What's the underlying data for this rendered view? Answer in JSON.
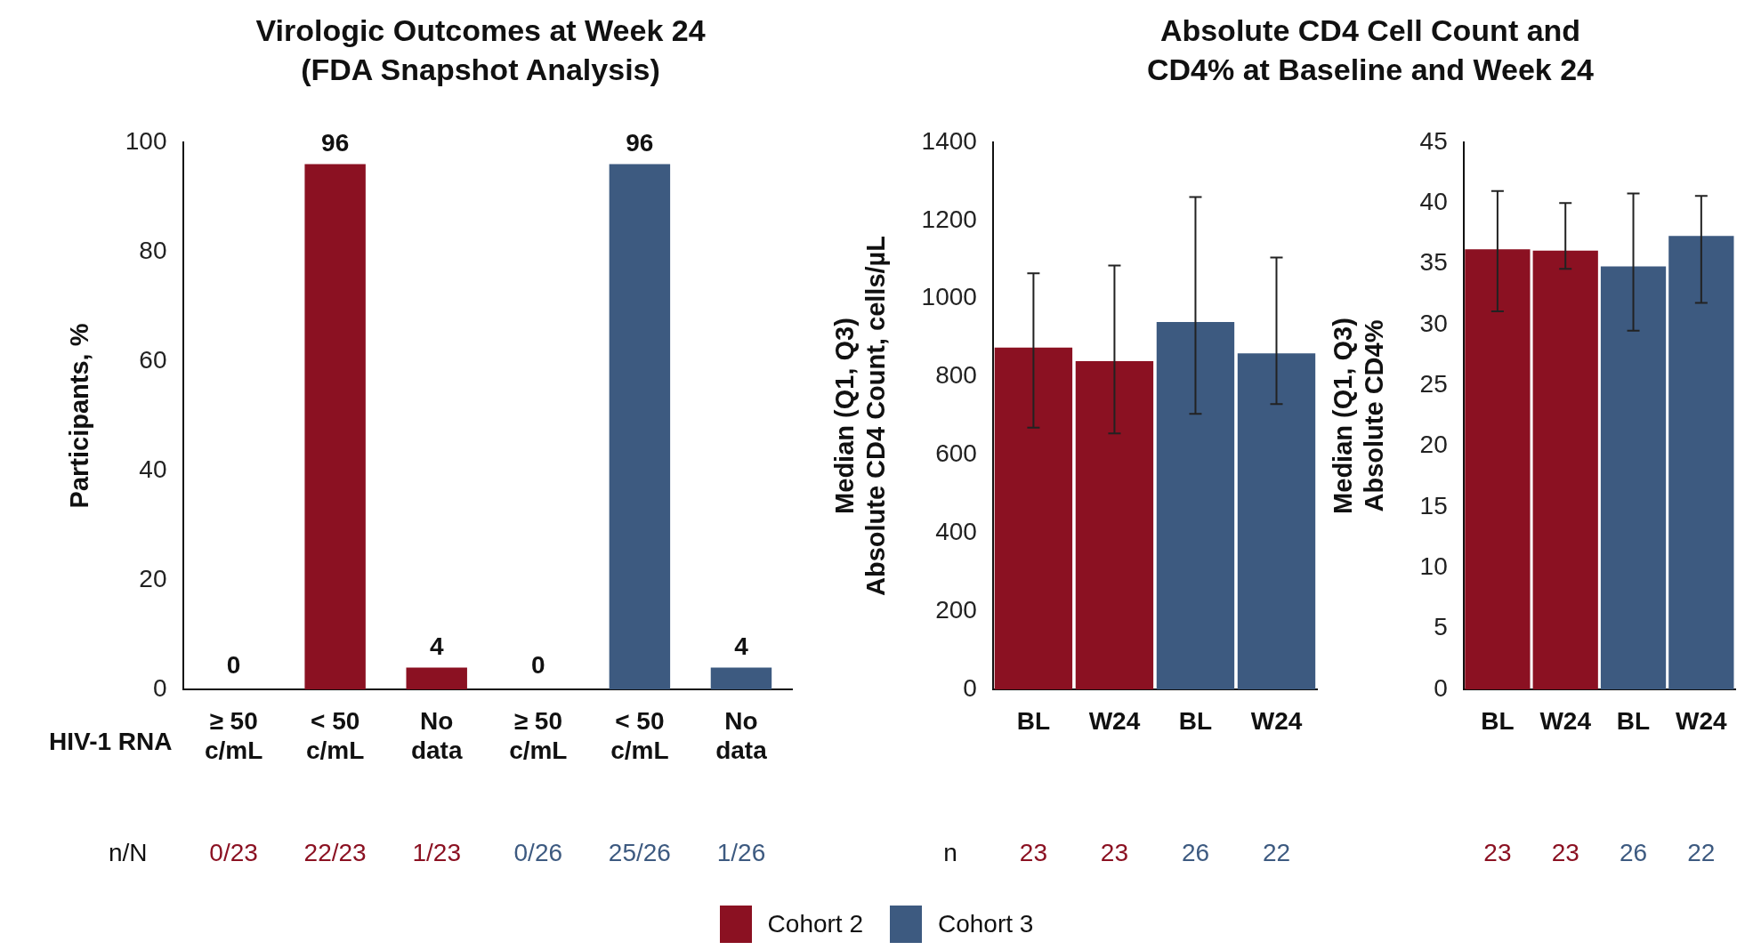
{
  "chart_data": [
    {
      "type": "bar",
      "title": "Virologic Outcomes at Week 24\n(FDA Snapshot Analysis)",
      "ylabel": "Participants, %",
      "xlabel": "HIV-1 RNA",
      "categories": [
        "≥ 50 c/mL",
        "< 50 c/mL",
        "No data",
        "≥ 50 c/mL",
        "< 50 c/mL",
        "No data"
      ],
      "series": [
        {
          "name": "Cohort 2",
          "color": "#8b1122",
          "values": [
            0,
            96,
            4,
            null,
            null,
            null
          ]
        },
        {
          "name": "Cohort 3",
          "color": "#3d5a80",
          "values": [
            null,
            null,
            null,
            0,
            96,
            4
          ]
        }
      ],
      "ylim": [
        0,
        100
      ],
      "yticks": [
        0,
        20,
        40,
        60,
        80,
        100
      ],
      "data_labels": true,
      "legend": "bottom",
      "annotations": [
        "n/N",
        "0/23",
        "22/23",
        "1/23",
        "0/26",
        "25/26",
        "1/26"
      ]
    },
    {
      "type": "bar",
      "title": "Absolute CD4 Cell Count and\nCD4% at Baseline and Week 24",
      "ylabel": "Median (Q1, Q3)\nAbsolute CD4 Count, cells/µL",
      "categories": [
        "BL",
        "W24",
        "BL",
        "W24"
      ],
      "series": [
        {
          "color": "#8b1122",
          "values": [
            875,
            840,
            null,
            null
          ],
          "errors": [
            [
              670,
              1065
            ],
            [
              655,
              1085
            ],
            null,
            null
          ]
        },
        {
          "color": "#3d5a80",
          "values": [
            null,
            null,
            940,
            860
          ],
          "errors": [
            null,
            null,
            [
              705,
              1260
            ],
            [
              730,
              1105
            ]
          ]
        }
      ],
      "ylim": [
        0,
        1400
      ],
      "yticks": [
        0,
        200,
        400,
        600,
        800,
        1000,
        1200,
        1400
      ],
      "annotations": [
        "n",
        "23",
        "23",
        "26",
        "22"
      ]
    },
    {
      "type": "bar",
      "ylabel": "Median (Q1, Q3)\nAbsolute CD4%",
      "categories": [
        "BL",
        "W24",
        "BL",
        "W24"
      ],
      "series": [
        {
          "color": "#8b1122",
          "values": [
            36.2,
            36.1,
            null,
            null
          ],
          "errors": [
            [
              31.1,
              41.0
            ],
            [
              34.6,
              40.0
            ],
            null,
            null
          ]
        },
        {
          "color": "#3d5a80",
          "values": [
            null,
            null,
            34.8,
            37.3
          ],
          "errors": [
            null,
            null,
            [
              29.5,
              40.8
            ],
            [
              31.8,
              40.6
            ]
          ]
        }
      ],
      "ylim": [
        0,
        45
      ],
      "yticks": [
        0,
        5,
        10,
        15,
        20,
        25,
        30,
        35,
        40,
        45
      ],
      "annotations": [
        "23",
        "23",
        "26",
        "22"
      ]
    }
  ]
}
